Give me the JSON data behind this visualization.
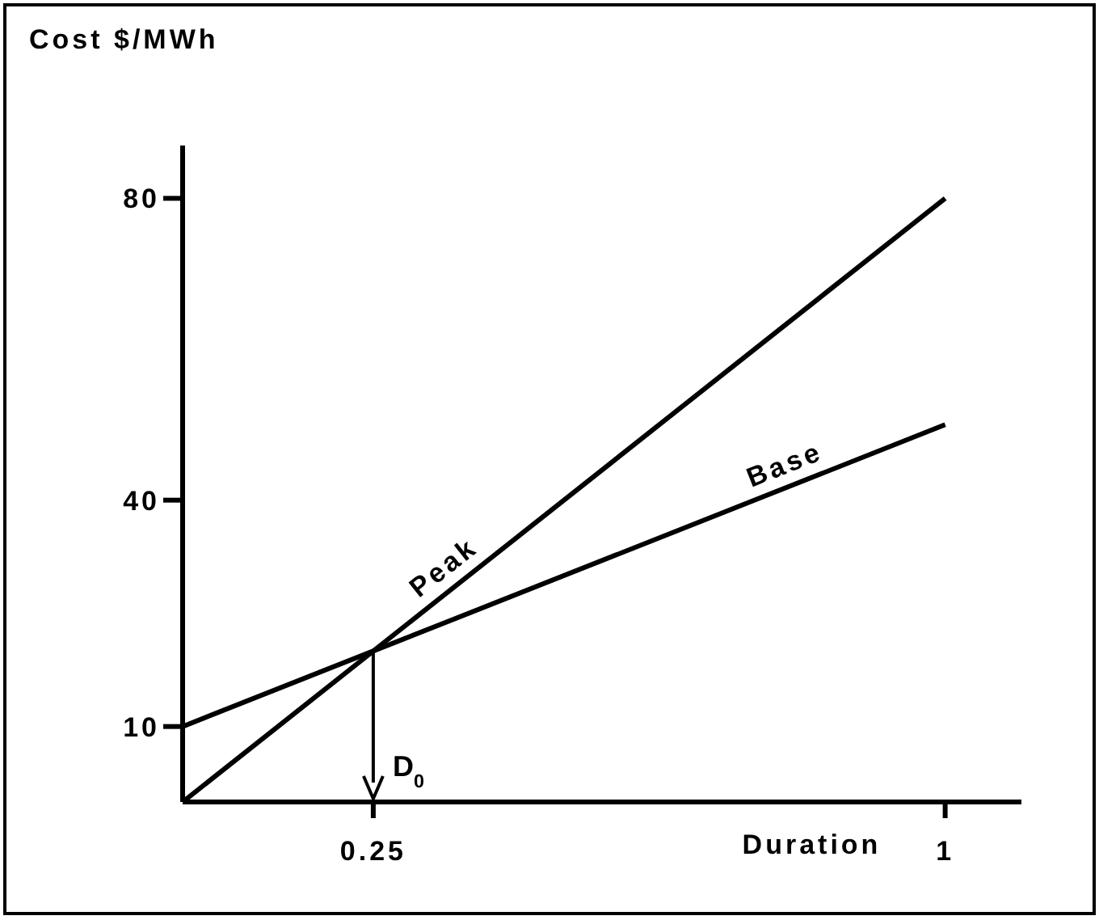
{
  "chart_data": {
    "type": "line",
    "xlabel": "Duration",
    "ylabel": "Cost $/MWh",
    "x": [
      0,
      1
    ],
    "xlim": [
      0,
      1.1
    ],
    "xticks": [
      0.25,
      1
    ],
    "ylim": [
      0,
      87
    ],
    "yticks": [
      10,
      40,
      80
    ],
    "series": [
      {
        "name": "Peak",
        "color": "#000000",
        "values": [
          0,
          80
        ]
      },
      {
        "name": "Base",
        "color": "#000000",
        "values": [
          10,
          50
        ]
      }
    ],
    "annotations": [
      {
        "text": "D$_{0}$",
        "x": 0.25,
        "y": 20
      }
    ],
    "marker": "none",
    "line_style": "solid"
  }
}
